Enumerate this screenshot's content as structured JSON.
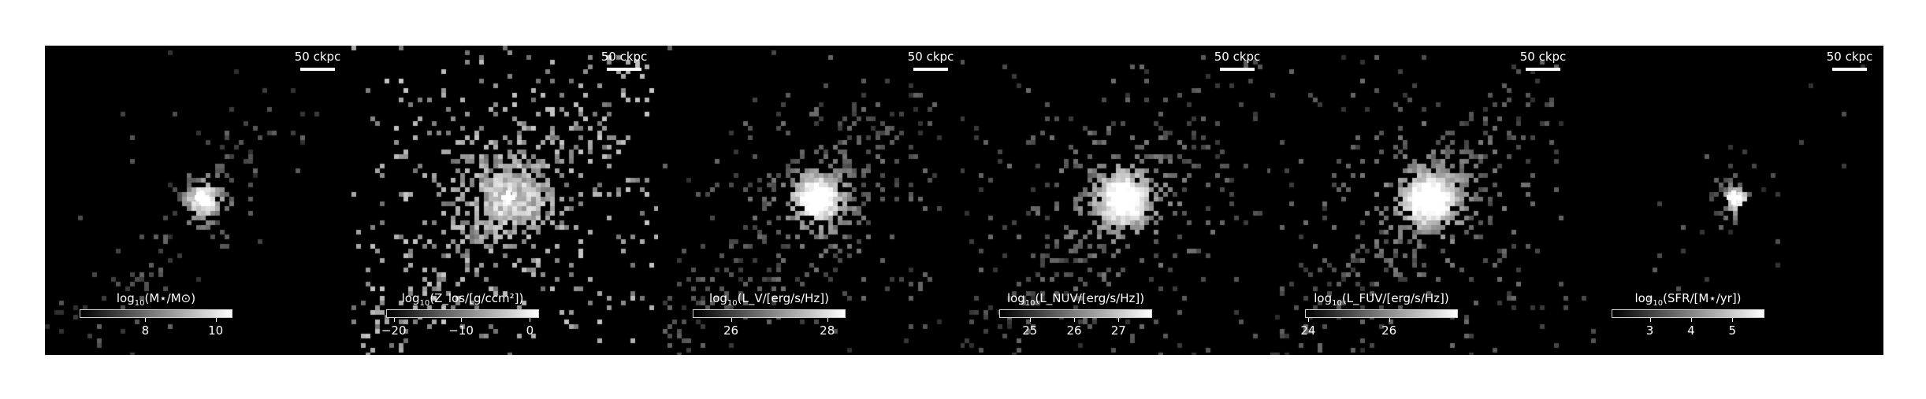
{
  "panels": [
    {
      "scalebar_label": "50 ckpc",
      "colorbar_label_prefix": "log",
      "colorbar_label_sub": "10",
      "colorbar_label_rest": "(M⋆/M⊙)",
      "ticks": [
        {
          "label": "8",
          "pos": 0.43
        },
        {
          "label": "10",
          "pos": 0.89
        }
      ],
      "image": {
        "spread": 0.55,
        "core": 1.0,
        "scatter": 0.2,
        "tail": 0.6
      }
    },
    {
      "scalebar_label": "50 ckpc",
      "colorbar_label_prefix": "log",
      "colorbar_label_sub": "10",
      "colorbar_label_rest": "(Z_los/[g/ccm²])",
      "ticks": [
        {
          "label": "−20",
          "pos": 0.05
        },
        {
          "label": "−10",
          "pos": 0.49
        },
        {
          "label": "0",
          "pos": 0.94
        }
      ],
      "image": {
        "spread": 1.0,
        "core": 1.0,
        "scatter": 1.0,
        "tail": 1.0
      }
    },
    {
      "scalebar_label": "50 ckpc",
      "colorbar_label_prefix": "log",
      "colorbar_label_sub": "10",
      "colorbar_label_rest": "(L_V/[erg/s/Hz])",
      "ticks": [
        {
          "label": "26",
          "pos": 0.25
        },
        {
          "label": "28",
          "pos": 0.88
        }
      ],
      "image": {
        "spread": 0.85,
        "core": 1.0,
        "scatter": 0.55,
        "tail": 0.85
      }
    },
    {
      "scalebar_label": "50 ckpc",
      "colorbar_label_prefix": "log",
      "colorbar_label_sub": "10",
      "colorbar_label_rest": "(L_NUV/[erg/s/Hz])",
      "ticks": [
        {
          "label": "25",
          "pos": 0.2
        },
        {
          "label": "26",
          "pos": 0.49
        },
        {
          "label": "27",
          "pos": 0.78
        }
      ],
      "image": {
        "spread": 0.9,
        "core": 0.95,
        "scatter": 0.7,
        "tail": 0.9
      }
    },
    {
      "scalebar_label": "50 ckpc",
      "colorbar_label_prefix": "log",
      "colorbar_label_sub": "10",
      "colorbar_label_rest": "(L_FUV/[erg/s/Hz])",
      "ticks": [
        {
          "label": "24",
          "pos": 0.02
        },
        {
          "label": "26",
          "pos": 0.55
        }
      ],
      "image": {
        "spread": 0.9,
        "core": 0.95,
        "scatter": 0.75,
        "tail": 0.9
      }
    },
    {
      "scalebar_label": "50 ckpc",
      "colorbar_label_prefix": "log",
      "colorbar_label_sub": "10",
      "colorbar_label_rest": "(SFR/[M⋆/yr])",
      "ticks": [
        {
          "label": "3",
          "pos": 0.25
        },
        {
          "label": "4",
          "pos": 0.52
        },
        {
          "label": "5",
          "pos": 0.79
        }
      ],
      "image": {
        "spread": 0.3,
        "core": 1.0,
        "scatter": 0.08,
        "tail": 0.25
      }
    }
  ]
}
